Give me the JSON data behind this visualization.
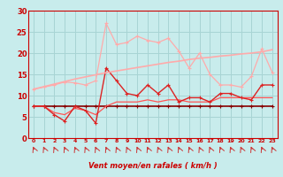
{
  "xlabel": "Vent moyen/en rafales ( km/h )",
  "bg_color": "#c8ecec",
  "grid_color": "#a8d4d4",
  "x_values": [
    0,
    1,
    2,
    3,
    4,
    5,
    6,
    7,
    8,
    9,
    10,
    11,
    12,
    13,
    14,
    15,
    16,
    17,
    18,
    19,
    20,
    21,
    22,
    23
  ],
  "line_trend_color": "#ffaaaa",
  "line_max_color": "#ffaaaa",
  "line_mid_color": "#dd2222",
  "line_smooth_color": "#ff5555",
  "line_flat_color": "#880000",
  "line_trend_y": [
    11.5,
    12.1,
    12.7,
    13.3,
    13.9,
    14.4,
    14.9,
    15.4,
    15.8,
    16.2,
    16.6,
    17.0,
    17.4,
    17.8,
    18.1,
    18.5,
    18.8,
    19.0,
    19.3,
    19.5,
    19.8,
    20.0,
    20.3,
    20.8
  ],
  "line_max_y": [
    11.5,
    12.0,
    12.5,
    13.2,
    13.0,
    12.5,
    13.5,
    27.0,
    22.0,
    22.5,
    24.0,
    23.0,
    22.5,
    23.5,
    20.5,
    16.5,
    20.0,
    15.0,
    12.5,
    12.5,
    12.0,
    14.5,
    21.0,
    15.5
  ],
  "line_mid_y": [
    7.5,
    7.5,
    5.5,
    4.0,
    7.5,
    6.5,
    3.5,
    16.5,
    13.5,
    10.5,
    10.0,
    12.5,
    10.5,
    12.5,
    8.5,
    9.5,
    9.5,
    8.5,
    10.5,
    10.5,
    9.5,
    9.0,
    12.5,
    12.5
  ],
  "line_smooth_y": [
    7.5,
    7.5,
    6.0,
    5.5,
    7.0,
    6.5,
    5.5,
    7.5,
    8.5,
    8.5,
    8.5,
    9.0,
    8.5,
    9.0,
    9.0,
    8.5,
    8.5,
    8.5,
    9.5,
    9.5,
    9.5,
    9.5,
    9.5,
    9.5
  ],
  "line_flat_y": [
    7.5,
    7.5,
    7.5,
    7.5,
    7.5,
    7.5,
    7.5,
    7.5,
    7.5,
    7.5,
    7.5,
    7.5,
    7.5,
    7.5,
    7.5,
    7.5,
    7.5,
    7.5,
    7.5,
    7.5,
    7.5,
    7.5,
    7.5,
    7.5
  ],
  "ylim": [
    0,
    30
  ],
  "yticks": [
    0,
    5,
    10,
    15,
    20,
    25,
    30
  ],
  "tick_color": "#cc0000",
  "label_fontsize": 5.5,
  "arrow_color": "#cc3333"
}
